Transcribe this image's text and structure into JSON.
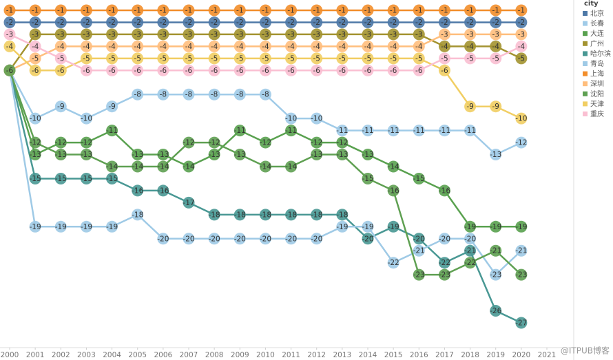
{
  "chart_data": {
    "type": "bump",
    "legend_title": "city",
    "x": [
      2000,
      2001,
      2002,
      2003,
      2004,
      2005,
      2006,
      2007,
      2008,
      2009,
      2010,
      2011,
      2012,
      2013,
      2014,
      2015,
      2016,
      2017,
      2018,
      2019,
      2020
    ],
    "xlim": [
      2000,
      2021
    ],
    "xticks": [
      2000,
      2001,
      2002,
      2003,
      2004,
      2005,
      2006,
      2007,
      2008,
      2009,
      2010,
      2011,
      2012,
      2013,
      2014,
      2015,
      2016,
      2017,
      2018,
      2019,
      2020,
      2021
    ],
    "ylim": [
      -27,
      -1
    ],
    "watermark": "@ITPUB博客",
    "series": [
      {
        "name": "北京",
        "color": "#4e79a7",
        "values": [
          -2,
          -2,
          -2,
          -2,
          -2,
          -2,
          -2,
          -2,
          -2,
          -2,
          -2,
          -2,
          -2,
          -2,
          -2,
          -2,
          -2,
          -2,
          -2,
          -2,
          -2
        ]
      },
      {
        "name": "长春",
        "color": "#a0cbe8",
        "values": [
          -6,
          -10,
          -9,
          -10,
          -9,
          -8,
          -8,
          -8,
          -8,
          -8,
          -8,
          -10,
          -10,
          -11,
          -11,
          -11,
          -11,
          -11,
          -11,
          -13,
          -12
        ]
      },
      {
        "name": "大连",
        "color": "#59a14f",
        "values": [
          -6,
          -13,
          -12,
          -12,
          -11,
          -13,
          -13,
          -14,
          -13,
          -11,
          -12,
          -11,
          -12,
          -12,
          -13,
          -14,
          -15,
          -16,
          -19,
          -19,
          -19
        ]
      },
      {
        "name": "广州",
        "color": "#a39330",
        "values": [
          -6,
          -3,
          -3,
          -3,
          -3,
          -3,
          -3,
          -3,
          -3,
          -3,
          -3,
          -3,
          -3,
          -3,
          -3,
          -3,
          -3,
          -4,
          -4,
          -4,
          -5
        ]
      },
      {
        "name": "哈尔滨",
        "color": "#499894",
        "values": [
          -6,
          -15,
          -15,
          -15,
          -15,
          -16,
          -16,
          -17,
          -18,
          -18,
          -18,
          -18,
          -18,
          -18,
          -20,
          -19,
          -20,
          -22,
          -21,
          -26,
          -27
        ]
      },
      {
        "name": "青岛",
        "color": "#9fcae6",
        "values": [
          -6,
          -19,
          -19,
          -19,
          -19,
          -18,
          -20,
          -20,
          -20,
          -20,
          -20,
          -20,
          -20,
          -19,
          -19,
          -22,
          -21,
          -20,
          -20,
          -23,
          -21
        ]
      },
      {
        "name": "上海",
        "color": "#f28e2b",
        "values": [
          -1,
          -1,
          -1,
          -1,
          -1,
          -1,
          -1,
          -1,
          -1,
          -1,
          -1,
          -1,
          -1,
          -1,
          -1,
          -1,
          -1,
          -1,
          -1,
          -1,
          -1
        ]
      },
      {
        "name": "深圳",
        "color": "#ffbe7d",
        "values": [
          -6,
          -5,
          -4,
          -4,
          -4,
          -4,
          -4,
          -4,
          -4,
          -4,
          -4,
          -4,
          -4,
          -4,
          -4,
          -4,
          -4,
          -3,
          -3,
          -3,
          -3
        ]
      },
      {
        "name": "沈阳",
        "color": "#5fa052",
        "values": [
          -6,
          -12,
          -13,
          -13,
          -14,
          -14,
          -14,
          -12,
          -12,
          -13,
          -14,
          -14,
          -13,
          -13,
          -15,
          -16,
          -23,
          -23,
          -22,
          -21,
          -23
        ]
      },
      {
        "name": "天津",
        "color": "#f1ce63",
        "values": [
          -4,
          -6,
          -6,
          -5,
          -5,
          -5,
          -5,
          -5,
          -5,
          -5,
          -5,
          -5,
          -5,
          -5,
          -5,
          -5,
          -5,
          -6,
          -9,
          -9,
          -10
        ]
      },
      {
        "name": "重庆",
        "color": "#fabfd2",
        "values": [
          -3,
          -4,
          -5,
          -6,
          -6,
          -6,
          -6,
          -6,
          -6,
          -6,
          -6,
          -6,
          -6,
          -6,
          -6,
          -6,
          -6,
          -5,
          -5,
          -5,
          -4
        ]
      }
    ]
  }
}
